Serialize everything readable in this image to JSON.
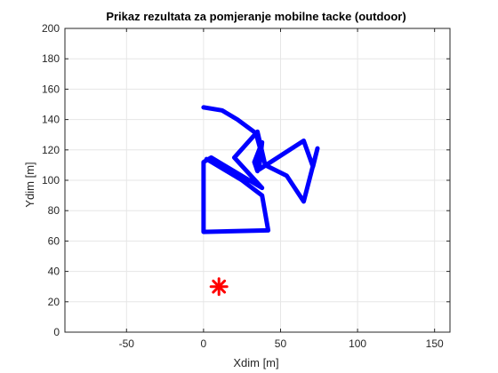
{
  "chart_data": {
    "type": "line",
    "title": "Prikaz rezultata za pomjeranje mobilne tacke (outdoor)",
    "xlabel": "Xdim [m]",
    "ylabel": "Ydim [m]",
    "xlim": [
      -90,
      160
    ],
    "ylim": [
      0,
      200
    ],
    "xticks": [
      -50,
      0,
      50,
      100,
      150
    ],
    "yticks": [
      0,
      20,
      40,
      60,
      80,
      100,
      120,
      140,
      160,
      180,
      200
    ],
    "grid": true,
    "series": [
      {
        "color": "#0000ff",
        "style": "thick-line",
        "points": [
          [
            0,
            148
          ],
          [
            12,
            146
          ],
          [
            22,
            140
          ],
          [
            34,
            131
          ],
          [
            37,
            120
          ],
          [
            35,
            106
          ],
          [
            33,
            112
          ],
          [
            38,
            125
          ],
          [
            36,
            107
          ],
          [
            65,
            126
          ],
          [
            71,
            109
          ],
          [
            74,
            121
          ],
          [
            65,
            86
          ],
          [
            54,
            103
          ],
          [
            40,
            110
          ],
          [
            35,
            132
          ],
          [
            20,
            115
          ],
          [
            38,
            95
          ],
          [
            5,
            115
          ],
          [
            0,
            112
          ],
          [
            0,
            105
          ],
          [
            0,
            66
          ],
          [
            42,
            67
          ],
          [
            38,
            90
          ],
          [
            25,
            100
          ],
          [
            2,
            114
          ]
        ]
      },
      {
        "color": "#ff0000",
        "style": "asterisk",
        "points": [
          [
            10,
            30
          ]
        ]
      }
    ]
  }
}
